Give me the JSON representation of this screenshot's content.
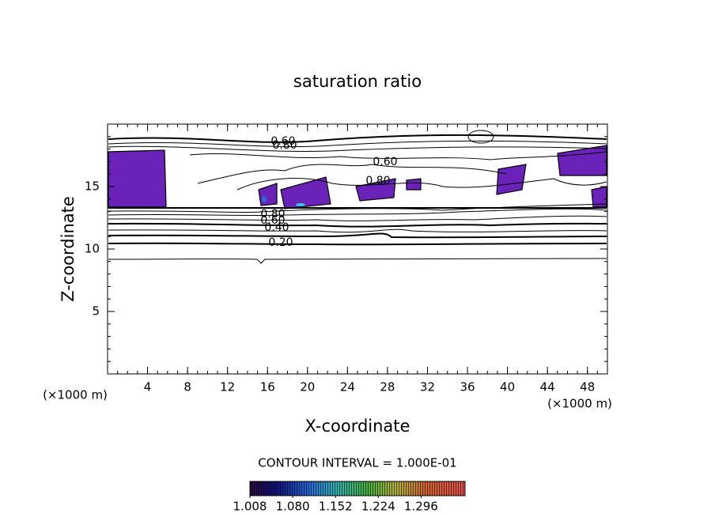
{
  "chart_data": {
    "type": "contour",
    "title": "saturation ratio",
    "xlabel": "X-coordinate",
    "ylabel": "Z-coordinate",
    "x_unit_left": "(×1000 m)",
    "x_unit_right": "(×1000 m)",
    "xlim": [
      0,
      50
    ],
    "xticks": [
      4,
      8,
      12,
      16,
      20,
      24,
      28,
      32,
      36,
      40,
      44,
      48
    ],
    "ylim": [
      0,
      20
    ],
    "yticks": [
      5,
      10,
      15
    ],
    "contour_labels": [
      "0.60",
      "0.80",
      "0.60",
      "0.80",
      "0.80",
      "0.60",
      "0.40",
      "0.20"
    ],
    "contour_interval": "CONTOUR INTERVAL = 1.000E-01",
    "colorbar": {
      "lim": [
        1.008,
        1.37
      ],
      "ticks": [
        {
          "value": 1.008,
          "label": "1.008"
        },
        {
          "value": 1.08,
          "label": "1.080"
        },
        {
          "value": 1.152,
          "label": "1.152"
        },
        {
          "value": 1.224,
          "label": "1.224"
        },
        {
          "value": 1.296,
          "label": "1.296"
        }
      ]
    }
  }
}
